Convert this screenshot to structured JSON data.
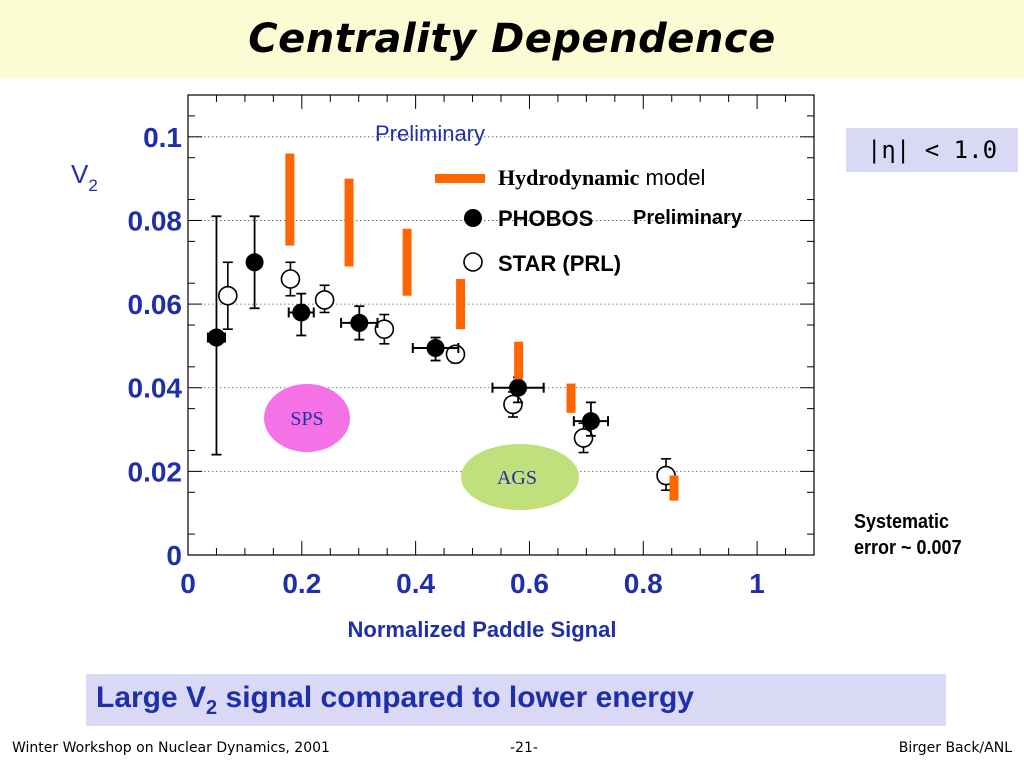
{
  "slide_title": "Centrality Dependence",
  "eta_cut": "|η| < 1.0",
  "systematic": {
    "line1": "Systematic",
    "line2": "error ~ 0.007"
  },
  "conclusion": {
    "pre": "Large V",
    "sub": "2",
    "post": " signal compared to lower energy"
  },
  "footer": {
    "left": "Winter Workshop on Nuclear Dynamics, 2001",
    "center": "-21-",
    "right": "Birger Back/ANL"
  },
  "colors": {
    "axis_text": "#1f2fa8",
    "hydro": "#ff6600",
    "sps": "#f472e6",
    "ags": "#bfe07a"
  },
  "chart_data": {
    "type": "scatter",
    "xlabel": "Normalized Paddle Signal",
    "ylabel": "V",
    "ylabel_sub": "2",
    "xlim": [
      0,
      1.1
    ],
    "ylim": [
      0,
      0.11
    ],
    "xticks": [
      0,
      0.2,
      0.4,
      0.6,
      0.8,
      1
    ],
    "xtick_labels": [
      "0",
      "0.2",
      "0.4",
      "0.6",
      "0.8",
      "1"
    ],
    "yticks": [
      0,
      0.02,
      0.04,
      0.06,
      0.08,
      0.1
    ],
    "ytick_labels": [
      "0",
      "0.02",
      "0.04",
      "0.06",
      "0.08",
      "0.1"
    ],
    "grid": "horizontal dotted",
    "legend_position": "top-right",
    "annotations": {
      "preliminary_top": "Preliminary",
      "sps": "SPS",
      "ags": "AGS"
    },
    "legend": {
      "hydro_a": "Hydrodynamic",
      "hydro_b": " model",
      "phobos": "PHOBOS",
      "phobos_note": "Preliminary",
      "star": "STAR (PRL)"
    },
    "series": [
      {
        "name": "Hydrodynamic model",
        "style": "vertical-band",
        "x": [
          0.179,
          0.283,
          0.385,
          0.479,
          0.581,
          0.673,
          0.854
        ],
        "ymin": [
          0.074,
          0.069,
          0.062,
          0.054,
          0.042,
          0.034,
          0.013
        ],
        "ymax": [
          0.096,
          0.09,
          0.078,
          0.066,
          0.051,
          0.041,
          0.019
        ]
      },
      {
        "name": "PHOBOS",
        "style": "filled-circle",
        "x": [
          0.05,
          0.117,
          0.199,
          0.301,
          0.435,
          0.58,
          0.708
        ],
        "y": [
          0.052,
          0.07,
          0.058,
          0.0555,
          0.0495,
          0.04,
          0.032
        ],
        "yerr_lo": [
          0.028,
          0.011,
          0.0055,
          0.004,
          0.003,
          0.0035,
          0.0035
        ],
        "yerr_hi": [
          0.029,
          0.011,
          0.0045,
          0.004,
          0.0025,
          0.0025,
          0.0045
        ],
        "xerr": [
          0.015,
          0.012,
          0.022,
          0.032,
          0.04,
          0.045,
          0.03
        ]
      },
      {
        "name": "STAR (PRL)",
        "style": "open-circle",
        "x": [
          0.07,
          0.18,
          0.24,
          0.345,
          0.47,
          0.571,
          0.695,
          0.84
        ],
        "y": [
          0.062,
          0.066,
          0.061,
          0.054,
          0.048,
          0.036,
          0.028,
          0.019
        ],
        "yerr_lo": [
          0.008,
          0.004,
          0.003,
          0.0035,
          0.002,
          0.003,
          0.0035,
          0.0035
        ],
        "yerr_hi": [
          0.008,
          0.004,
          0.0035,
          0.0035,
          0.0015,
          0.003,
          0.0035,
          0.004
        ]
      }
    ]
  }
}
